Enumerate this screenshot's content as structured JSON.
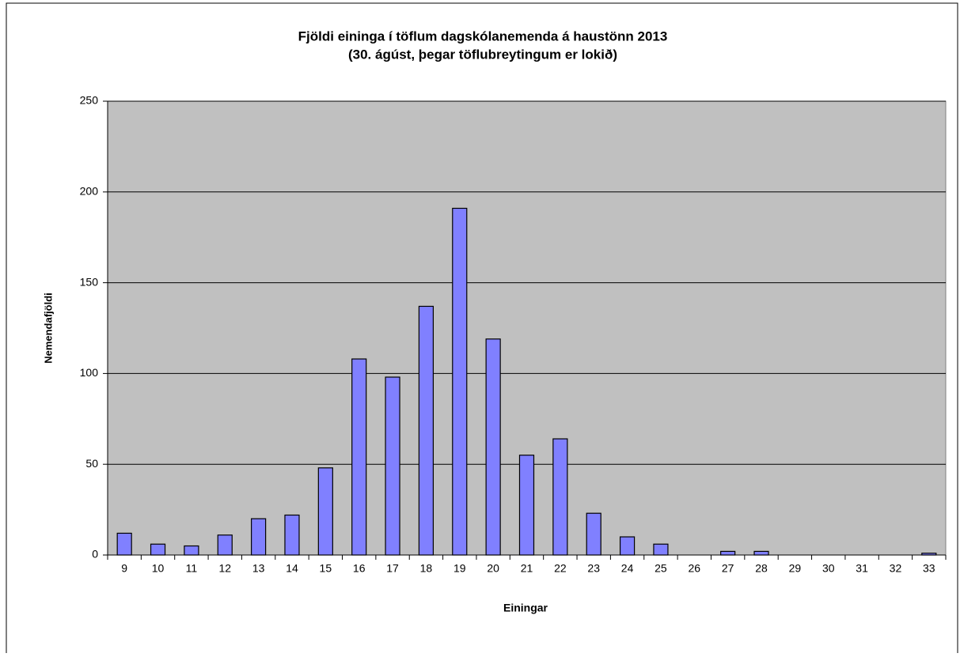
{
  "chart_data": {
    "type": "bar",
    "title": "Fjöldi eininga í töflum dagskólanemenda á haustönn 2013",
    "subtitle": "(30. ágúst, þegar töflubreytingum er lokið)",
    "x_label": "Einingar",
    "y_label": "Nemendafjöldi",
    "categories": [
      9,
      10,
      11,
      12,
      13,
      14,
      15,
      16,
      17,
      18,
      19,
      20,
      21,
      22,
      23,
      24,
      25,
      26,
      27,
      28,
      29,
      30,
      31,
      32,
      33
    ],
    "values": [
      12,
      6,
      5,
      11,
      20,
      22,
      48,
      108,
      98,
      137,
      191,
      119,
      55,
      64,
      23,
      10,
      6,
      0,
      2,
      2,
      0,
      0,
      0,
      0,
      1
    ],
    "color": "#8080ff",
    "plot_background": "#c0c0c0",
    "ylim": [
      0,
      250
    ],
    "yticks": [
      0,
      50,
      100,
      150,
      200,
      250
    ],
    "grid": true
  }
}
